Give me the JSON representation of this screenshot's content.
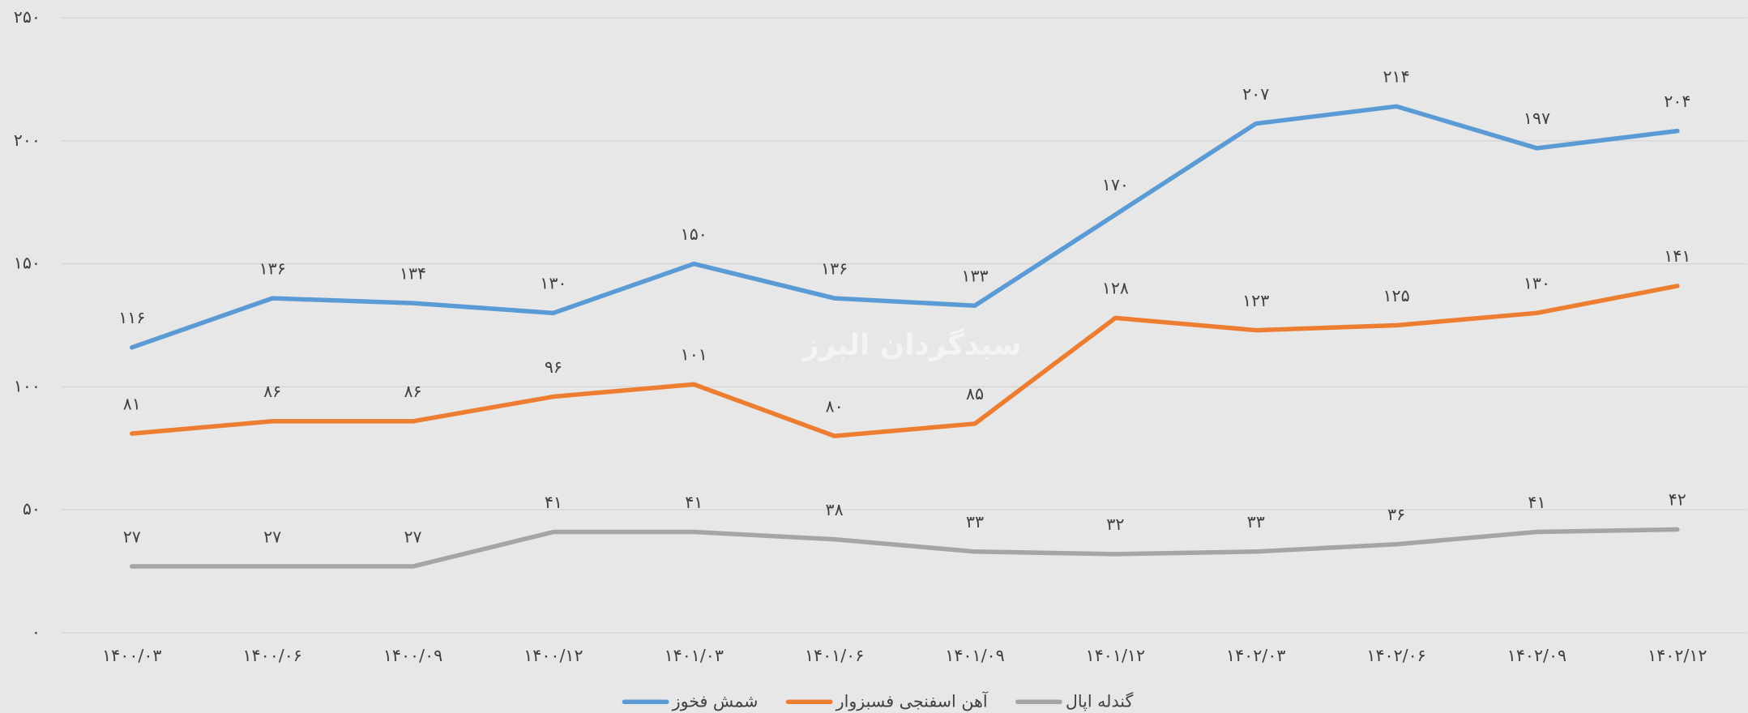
{
  "chart_data": {
    "type": "line",
    "watermark": "سبدگردان البرز",
    "categories": [
      "۱۴۰۰/۰۳",
      "۱۴۰۰/۰۶",
      "۱۴۰۰/۰۹",
      "۱۴۰۰/۱۲",
      "۱۴۰۱/۰۳",
      "۱۴۰۱/۰۶",
      "۱۴۰۱/۰۹",
      "۱۴۰۱/۱۲",
      "۱۴۰۲/۰۳",
      "۱۴۰۲/۰۶",
      "۱۴۰۲/۰۹",
      "۱۴۰۲/۱۲"
    ],
    "series": [
      {
        "name": "شمش فخوز",
        "color": "#5b9bd5",
        "values": [
          116,
          136,
          134,
          130,
          150,
          136,
          133,
          170,
          207,
          214,
          197,
          204
        ],
        "value_labels": [
          "۱۱۶",
          "۱۳۶",
          "۱۳۴",
          "۱۳۰",
          "۱۵۰",
          "۱۳۶",
          "۱۳۳",
          "۱۷۰",
          "۲۰۷",
          "۲۱۴",
          "۱۹۷",
          "۲۰۴"
        ]
      },
      {
        "name": "آهن اسفنجی فسبزوار",
        "color": "#ed7d31",
        "values": [
          81,
          86,
          86,
          96,
          101,
          80,
          85,
          128,
          123,
          125,
          130,
          141
        ],
        "value_labels": [
          "۸۱",
          "۸۶",
          "۸۶",
          "۹۶",
          "۱۰۱",
          "۸۰",
          "۸۵",
          "۱۲۸",
          "۱۲۳",
          "۱۲۵",
          "۱۳۰",
          "۱۴۱"
        ]
      },
      {
        "name": "گندله اپال",
        "color": "#a5a5a5",
        "values": [
          27,
          27,
          27,
          41,
          41,
          38,
          33,
          32,
          33,
          36,
          41,
          42
        ],
        "value_labels": [
          "۲۷",
          "۲۷",
          "۲۷",
          "۴۱",
          "۴۱",
          "۳۸",
          "۳۳",
          "۳۲",
          "۳۳",
          "۳۶",
          "۴۱",
          "۴۲"
        ]
      }
    ],
    "ylim": [
      0,
      250
    ],
    "yticks": [
      {
        "value": 0,
        "label": "۰"
      },
      {
        "value": 50,
        "label": "۵۰"
      },
      {
        "value": 100,
        "label": "۱۰۰"
      },
      {
        "value": 150,
        "label": "۱۵۰"
      },
      {
        "value": 200,
        "label": "۲۰۰"
      },
      {
        "value": 250,
        "label": "۲۵۰"
      }
    ],
    "grid": true,
    "legend": "bottom"
  }
}
